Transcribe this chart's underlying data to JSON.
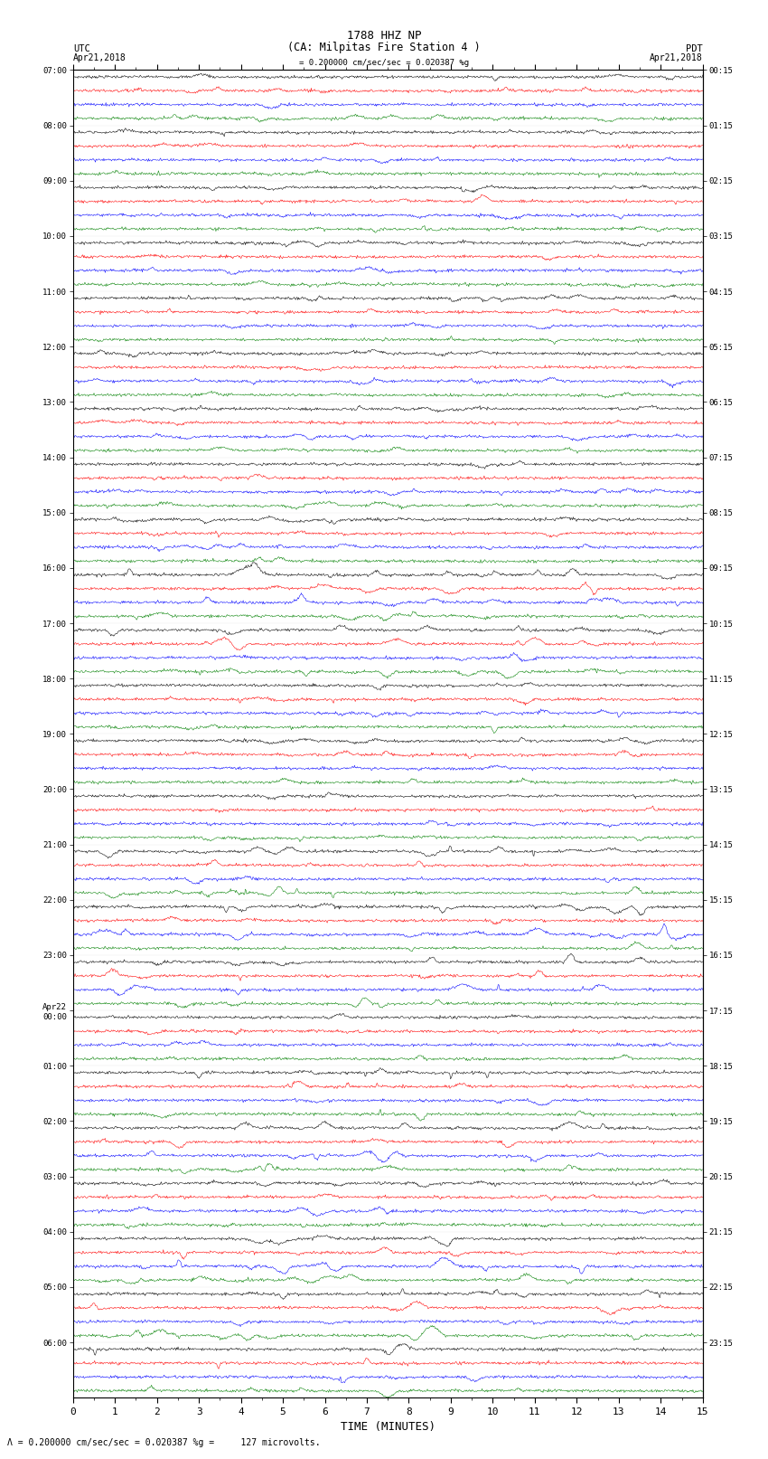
{
  "title_line1": "1788 HHZ NP",
  "title_line2": "(CA: Milpitas Fire Station 4 )",
  "left_header": "UTC",
  "left_date": "Apr21,2018",
  "right_header": "PDT",
  "right_date": "Apr21,2018",
  "scale_text": "= 0.200000 cm/sec/sec = 0.020387 %g =     127 microvolts.",
  "xlabel": "TIME (MINUTES)",
  "xlim": [
    0,
    15
  ],
  "xticks": [
    0,
    1,
    2,
    3,
    4,
    5,
    6,
    7,
    8,
    9,
    10,
    11,
    12,
    13,
    14,
    15
  ],
  "trace_scale_annotation": "= 0.200000 cm/sec/sec = 0.020387 %g",
  "colors": [
    "black",
    "red",
    "blue",
    "green"
  ],
  "n_rows": 96,
  "amplitude": 0.35,
  "bg_color": "#ffffff",
  "utc_times": [
    "07:00",
    "08:00",
    "09:00",
    "10:00",
    "11:00",
    "12:00",
    "13:00",
    "14:00",
    "15:00",
    "16:00",
    "17:00",
    "18:00",
    "19:00",
    "20:00",
    "21:00",
    "22:00",
    "23:00",
    "Apr22\n00:00",
    "01:00",
    "02:00",
    "03:00",
    "04:00",
    "05:00",
    "06:00"
  ],
  "pdt_times": [
    "00:15",
    "01:15",
    "02:15",
    "03:15",
    "04:15",
    "05:15",
    "06:15",
    "07:15",
    "08:15",
    "09:15",
    "10:15",
    "11:15",
    "12:15",
    "13:15",
    "14:15",
    "15:15",
    "16:15",
    "17:15",
    "18:15",
    "19:15",
    "20:15",
    "21:15",
    "22:15",
    "23:15"
  ]
}
